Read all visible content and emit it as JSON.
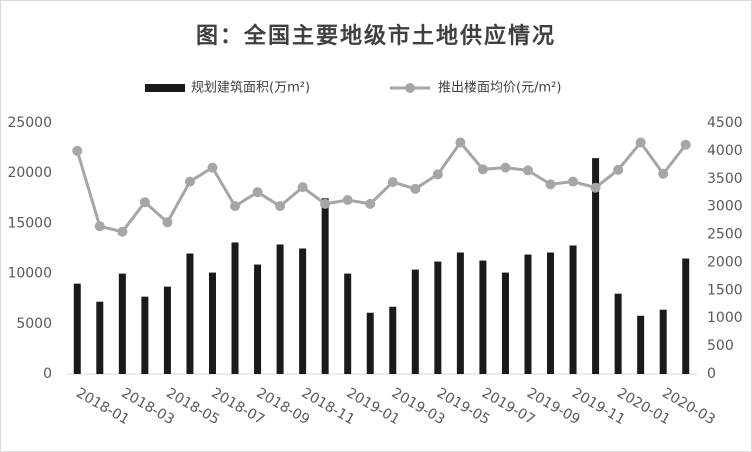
{
  "chart_data": {
    "type": "bar_line",
    "title": "图：全国主要地级市土地供应情况",
    "categories": [
      "2018-01",
      null,
      "2018-03",
      null,
      "2018-05",
      null,
      "2018-07",
      null,
      "2018-09",
      null,
      "2018-11",
      null,
      "2019-01",
      null,
      "2019-03",
      null,
      "2019-05",
      null,
      "2019-07",
      null,
      "2019-09",
      null,
      "2019-11",
      null,
      "2020-01",
      null,
      "2020-03",
      null
    ],
    "series": [
      {
        "name": "规划建筑面积(万m²)",
        "type": "bar",
        "color": "#1a1a1a",
        "values": [
          9000,
          7200,
          10000,
          7700,
          8700,
          12000,
          10100,
          13100,
          10900,
          12900,
          12500,
          17500,
          10000,
          6100,
          6700,
          10400,
          11200,
          12100,
          11300,
          10100,
          11900,
          12100,
          12800,
          21500,
          8000,
          5800,
          6400,
          11500
        ]
      },
      {
        "name": "推出楼面均价(元/m²)",
        "type": "line",
        "axis": "y2",
        "color": "#a6a6a6",
        "values": [
          4000,
          2650,
          2550,
          3080,
          2720,
          3450,
          3700,
          3010,
          3260,
          3010,
          3350,
          3050,
          3120,
          3050,
          3440,
          3320,
          3580,
          4150,
          3670,
          3700,
          3650,
          3400,
          3450,
          3340,
          3660,
          4150,
          3590,
          4110
        ]
      }
    ],
    "ylim": [
      0,
      25000
    ],
    "yticks": [
      0,
      5000,
      10000,
      15000,
      20000,
      25000
    ],
    "y2lim": [
      0,
      4500
    ],
    "y2ticks": [
      0,
      500,
      1000,
      1500,
      2000,
      2500,
      3000,
      3500,
      4000,
      4500
    ],
    "legend": "top"
  }
}
